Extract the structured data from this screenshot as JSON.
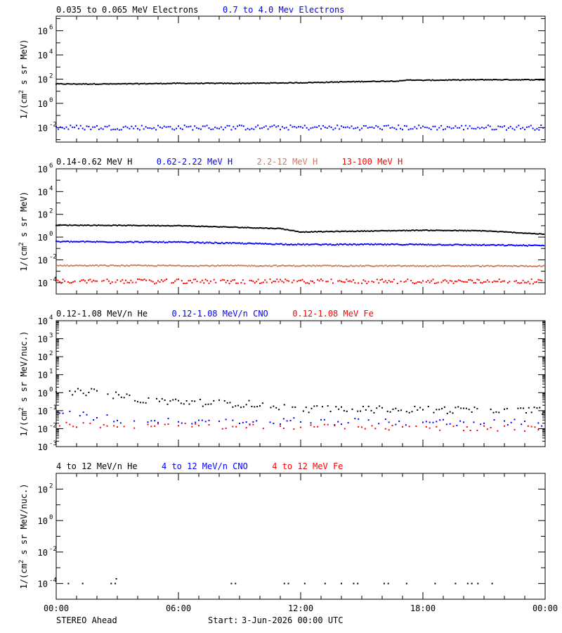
{
  "colors": {
    "black": "#000000",
    "blue": "#0000ff",
    "tan": "#c87b64",
    "red": "#ff0000"
  },
  "footer": {
    "spacecraft": "STEREO Ahead",
    "start_label": "Start:",
    "start_value": "3-Jun-2026 00:00 UTC"
  },
  "time_axis": {
    "range_hours": [
      0,
      24
    ],
    "ticks": [
      {
        "h": 0,
        "label": "00:00"
      },
      {
        "h": 6,
        "label": "06:00"
      },
      {
        "h": 12,
        "label": "12:00"
      },
      {
        "h": 18,
        "label": "18:00"
      },
      {
        "h": 24,
        "label": "00:00"
      }
    ]
  },
  "chart_data": [
    {
      "type": "scatter",
      "ylabel_base": "1/(cm",
      "ylabel_sup": "2",
      "ylabel_rest": " s sr MeV)",
      "y_scale": "log",
      "ylim_exp": [
        -3.2,
        7.2
      ],
      "ytick_exps": [
        -2,
        0,
        2,
        4,
        6
      ],
      "series": [
        {
          "name": "0.035 to 0.065 MeV Electrons",
          "color": "#000000",
          "keyframes_h": [
            0,
            3,
            6,
            9,
            12,
            15,
            17,
            17.3,
            17.8,
            21,
            24
          ],
          "keyframes_exp": [
            1.6,
            1.6,
            1.65,
            1.65,
            1.7,
            1.8,
            1.85,
            1.95,
            1.9,
            1.95,
            1.95
          ],
          "noise_exp": 0.03,
          "step_min": 4,
          "fill": 1
        },
        {
          "name": "0.7 to 4.0 Mev Electrons",
          "color": "#0000ff",
          "keyframes_h": [
            0,
            24
          ],
          "keyframes_exp": [
            -2.0,
            -2.0
          ],
          "noise_exp": 0.2,
          "step_min": 6,
          "fill": 1
        }
      ]
    },
    {
      "type": "scatter",
      "ylabel_base": "1/(cm",
      "ylabel_sup": "2",
      "ylabel_rest": " s sr MeV)",
      "y_scale": "log",
      "ylim_exp": [
        -5.0,
        6.0
      ],
      "ytick_exps": [
        -4,
        -2,
        0,
        2,
        4,
        6
      ],
      "series": [
        {
          "name": "0.14-0.62 MeV H",
          "color": "#000000",
          "keyframes_h": [
            0,
            6,
            11,
            12,
            18,
            21,
            24
          ],
          "keyframes_exp": [
            1.05,
            1.0,
            0.75,
            0.45,
            0.6,
            0.55,
            0.25
          ],
          "noise_exp": 0.03,
          "step_min": 4,
          "fill": 1
        },
        {
          "name": "0.62-2.22 MeV H",
          "color": "#0000ff",
          "keyframes_h": [
            0,
            6,
            12,
            18,
            24
          ],
          "keyframes_exp": [
            -0.4,
            -0.45,
            -0.65,
            -0.65,
            -0.75
          ],
          "noise_exp": 0.05,
          "step_min": 4,
          "fill": 1
        },
        {
          "name": "2.2-12 MeV H",
          "color": "#c87b64",
          "keyframes_h": [
            0,
            24
          ],
          "keyframes_exp": [
            -2.5,
            -2.55
          ],
          "noise_exp": 0.05,
          "step_min": 4,
          "fill": 1
        },
        {
          "name": "13-100 MeV H",
          "color": "#ff0000",
          "keyframes_h": [
            0,
            24
          ],
          "keyframes_exp": [
            -3.9,
            -3.9
          ],
          "noise_exp": 0.2,
          "step_min": 5,
          "fill": 0.85
        }
      ]
    },
    {
      "type": "scatter",
      "ylabel_base": "1/(cm",
      "ylabel_sup": "2",
      "ylabel_rest": " s sr MeV/nuc.)",
      "y_scale": "log",
      "ylim_exp": [
        -3.0,
        4.0
      ],
      "ytick_exps": [
        -3,
        -2,
        -1,
        0,
        1,
        2,
        3,
        4
      ],
      "series": [
        {
          "name": "0.12-1.08 MeV/n He",
          "color": "#000000",
          "keyframes_h": [
            0,
            2,
            4,
            7,
            10,
            12,
            24
          ],
          "keyframes_exp": [
            0.0,
            0.05,
            -0.4,
            -0.55,
            -0.65,
            -0.9,
            -1.0
          ],
          "noise_exp": 0.2,
          "step_min": 8,
          "fill": 0.8
        },
        {
          "name": "0.12-1.08 MeV/n CNO",
          "color": "#0000ff",
          "keyframes_h": [
            0,
            3,
            24
          ],
          "keyframes_exp": [
            -1.1,
            -1.5,
            -1.7
          ],
          "noise_exp": 0.2,
          "step_min": 10,
          "fill": 0.55
        },
        {
          "name": "0.12-1.08 MeV Fe",
          "color": "#ff0000",
          "keyframes_h": [
            0,
            24
          ],
          "keyframes_exp": [
            -1.8,
            -2.0
          ],
          "noise_exp": 0.15,
          "step_min": 10,
          "fill": 0.55
        }
      ]
    },
    {
      "type": "scatter",
      "ylabel_base": "1/(cm",
      "ylabel_sup": "2",
      "ylabel_rest": " s sr MeV/nuc.)",
      "y_scale": "log",
      "ylim_exp": [
        -5.0,
        3.0
      ],
      "ytick_exps": [
        -4,
        -2,
        0,
        2
      ],
      "series": [
        {
          "name": "4 to 12 MeV/n He",
          "color": "#000000",
          "points": [
            [
              0.6,
              -4
            ],
            [
              1.3,
              -4
            ],
            [
              2.7,
              -4
            ],
            [
              2.9,
              -4
            ],
            [
              2.95,
              -3.7
            ],
            [
              8.6,
              -4
            ],
            [
              8.8,
              -4
            ],
            [
              11.2,
              -4
            ],
            [
              11.4,
              -4
            ],
            [
              12.2,
              -4
            ],
            [
              13.2,
              -4
            ],
            [
              14.0,
              -4
            ],
            [
              14.6,
              -4
            ],
            [
              14.8,
              -4
            ],
            [
              16.1,
              -4
            ],
            [
              16.3,
              -4
            ],
            [
              17.2,
              -4
            ],
            [
              18.6,
              -4
            ],
            [
              19.6,
              -4
            ],
            [
              20.2,
              -4
            ],
            [
              20.4,
              -4
            ],
            [
              20.7,
              -4
            ],
            [
              21.4,
              -4
            ]
          ]
        },
        {
          "name": "4 to 12 MeV/n CNO",
          "color": "#0000ff",
          "points": []
        },
        {
          "name": "4 to 12 MeV Fe",
          "color": "#ff0000",
          "points": []
        }
      ]
    }
  ]
}
